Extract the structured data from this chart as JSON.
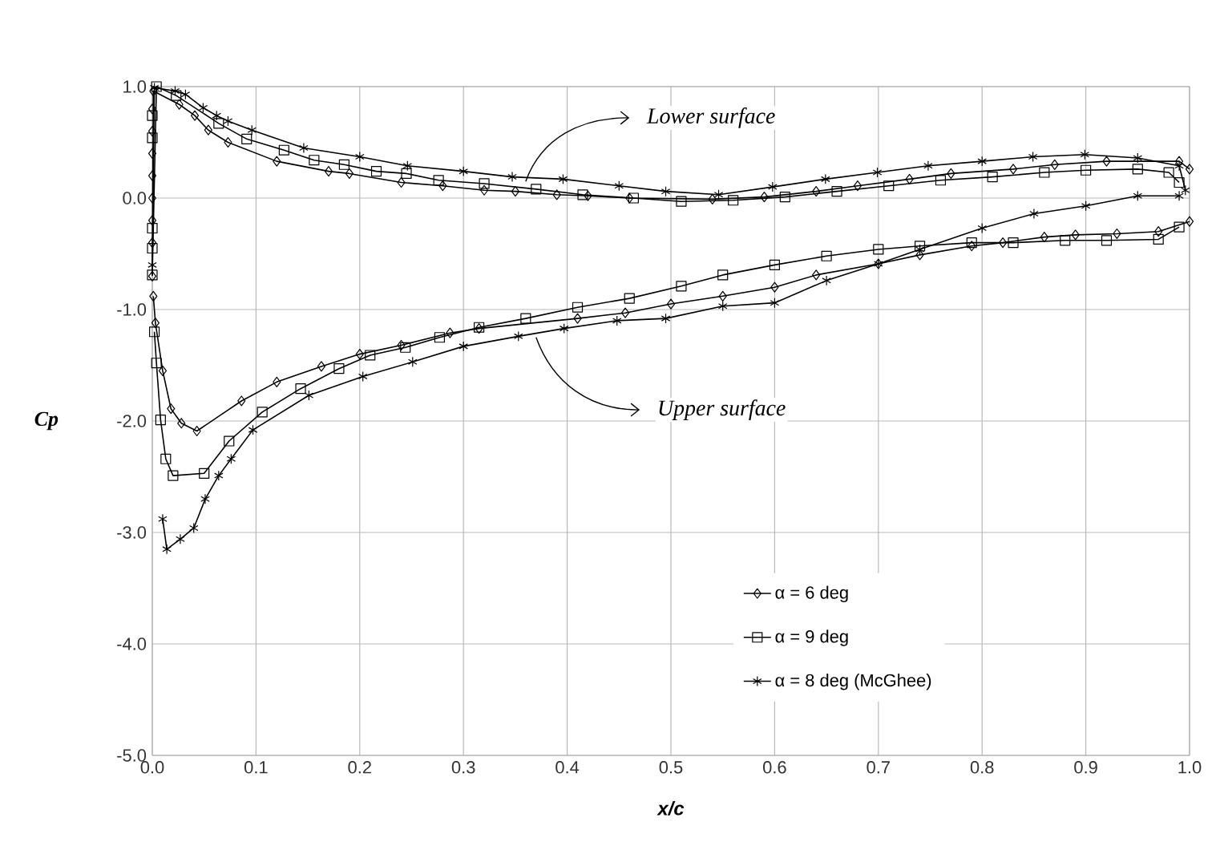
{
  "chart_data": {
    "type": "line",
    "xlabel": "x/c",
    "ylabel": "Cp",
    "xlim": [
      0,
      1
    ],
    "ylim": [
      -5,
      1
    ],
    "xticks": [
      {
        "value": 0,
        "label": "0.0"
      },
      {
        "value": 0.1,
        "label": "0.1"
      },
      {
        "value": 0.2,
        "label": "0.2"
      },
      {
        "value": 0.3,
        "label": "0.3"
      },
      {
        "value": 0.4,
        "label": "0.4"
      },
      {
        "value": 0.5,
        "label": "0.5"
      },
      {
        "value": 0.6,
        "label": "0.6"
      },
      {
        "value": 0.7,
        "label": "0.7"
      },
      {
        "value": 0.8,
        "label": "0.8"
      },
      {
        "value": 0.9,
        "label": "0.9"
      },
      {
        "value": 1,
        "label": "1.0"
      }
    ],
    "yticks": [
      {
        "value": -5,
        "label": "-5.0"
      },
      {
        "value": -4,
        "label": "-4.0"
      },
      {
        "value": -3,
        "label": "-3.0"
      },
      {
        "value": -2,
        "label": "-2.0"
      },
      {
        "value": -1,
        "label": "-1.0"
      },
      {
        "value": 0,
        "label": "0.0"
      },
      {
        "value": 1,
        "label": "1.0"
      }
    ],
    "grid": true,
    "legend": "bottom right",
    "line_style": "solid",
    "annotations": [
      {
        "text": "Lower surface",
        "x": 0.36,
        "y": 0.15
      },
      {
        "text": "Upper surface",
        "x": 0.37,
        "y": -1.25
      }
    ],
    "series": [
      {
        "name": "α = 6 deg",
        "color": "#000000",
        "marker": "diamond",
        "x": [
          1.0,
          0.99,
          0.92,
          0.87,
          0.83,
          0.77,
          0.73,
          0.68,
          0.64,
          0.59,
          0.54,
          0.46,
          0.42,
          0.39,
          0.35,
          0.32,
          0.28,
          0.24,
          0.19,
          0.17,
          0.12,
          0.073,
          0.054,
          0.041,
          0.026,
          0.001,
          0.0
        ],
        "values": [
          0.26,
          0.33,
          0.33,
          0.3,
          0.26,
          0.22,
          0.17,
          0.11,
          0.06,
          0.01,
          -0.01,
          0.0,
          0.02,
          0.03,
          0.06,
          0.07,
          0.11,
          0.14,
          0.22,
          0.24,
          0.33,
          0.5,
          0.61,
          0.74,
          0.84,
          0.96,
          -0.7
        ]
      },
      {
        "color": "#000000",
        "marker": "diamond",
        "x": [
          0.001,
          0.003,
          0.01,
          0.018,
          0.028,
          0.043,
          0.086,
          0.12,
          0.163,
          0.2,
          0.24,
          0.287,
          0.315,
          0.41,
          0.456,
          0.5,
          0.55,
          0.6,
          0.64,
          0.7,
          0.74,
          0.79,
          0.82,
          0.86,
          0.89,
          0.93,
          0.97,
          1.0
        ],
        "values": [
          -0.88,
          -1.12,
          -1.55,
          -1.89,
          -2.02,
          -2.09,
          -1.82,
          -1.65,
          -1.51,
          -1.4,
          -1.32,
          -1.21,
          -1.17,
          -1.08,
          -1.03,
          -0.95,
          -0.88,
          -0.8,
          -0.69,
          -0.59,
          -0.51,
          -0.43,
          -0.4,
          -0.35,
          -0.33,
          -0.32,
          -0.3,
          -0.21
        ]
      },
      {
        "name": "α = 9 deg",
        "color": "#000000",
        "marker": "square",
        "x": [
          0.99,
          0.98,
          0.95,
          0.9,
          0.86,
          0.81,
          0.76,
          0.71,
          0.66,
          0.61,
          0.56,
          0.51,
          0.464,
          0.415,
          0.37,
          0.32,
          0.276,
          0.245,
          0.216,
          0.185,
          0.156,
          0.127,
          0.091,
          0.064,
          0.023,
          0.004,
          0.0
        ],
        "values": [
          0.14,
          0.23,
          0.26,
          0.25,
          0.23,
          0.19,
          0.16,
          0.11,
          0.06,
          0.01,
          -0.02,
          -0.03,
          0.0,
          0.03,
          0.08,
          0.13,
          0.16,
          0.22,
          0.24,
          0.3,
          0.34,
          0.43,
          0.53,
          0.67,
          0.92,
          1.0,
          -0.69
        ]
      },
      {
        "color": "#000000",
        "marker": "square",
        "x": [
          0.002,
          0.004,
          0.008,
          0.013,
          0.02,
          0.05,
          0.074,
          0.106,
          0.143,
          0.18,
          0.21,
          0.244,
          0.277,
          0.315,
          0.36,
          0.41,
          0.46,
          0.51,
          0.55,
          0.6,
          0.65,
          0.7,
          0.74,
          0.79,
          0.83,
          0.88,
          0.92,
          0.97,
          0.99
        ],
        "values": [
          -1.2,
          -1.48,
          -1.99,
          -2.34,
          -2.49,
          -2.47,
          -2.18,
          -1.92,
          -1.71,
          -1.53,
          -1.41,
          -1.34,
          -1.25,
          -1.16,
          -1.08,
          -0.98,
          -0.9,
          -0.79,
          -0.69,
          -0.6,
          -0.52,
          -0.46,
          -0.43,
          -0.4,
          -0.4,
          -0.38,
          -0.38,
          -0.37,
          -0.26
        ]
      },
      {
        "type": "scatter",
        "color": "#000000",
        "marker": "diamond",
        "x": [
          0.0,
          0.0,
          0.0,
          0.0,
          0.0,
          0.0,
          0.0
        ],
        "values": [
          0.8,
          0.6,
          0.4,
          0.2,
          0.0,
          -0.2,
          -0.4
        ]
      },
      {
        "type": "scatter",
        "color": "#000000",
        "marker": "square",
        "x": [
          0.0,
          0.0,
          0.0,
          0.0
        ],
        "values": [
          0.74,
          0.54,
          -0.27,
          -0.45
        ]
      },
      {
        "name": "α = 8 deg (McGhee)",
        "color": "#000000",
        "marker": "cross",
        "x": [
          0.996,
          0.99,
          0.95,
          0.899,
          0.849,
          0.8,
          0.748,
          0.699,
          0.649,
          0.598,
          0.546,
          0.495,
          0.45,
          0.396,
          0.347,
          0.3,
          0.246,
          0.2,
          0.146,
          0.096,
          0.073,
          0.062,
          0.049,
          0.032,
          0.022,
          0.002,
          0.0
        ],
        "values": [
          0.07,
          0.29,
          0.36,
          0.39,
          0.37,
          0.33,
          0.29,
          0.23,
          0.17,
          0.1,
          0.03,
          0.06,
          0.11,
          0.17,
          0.19,
          0.24,
          0.29,
          0.37,
          0.45,
          0.61,
          0.69,
          0.74,
          0.81,
          0.93,
          0.96,
          0.99,
          -0.6
        ]
      },
      {
        "color": "#000000",
        "marker": "cross",
        "x": [
          0.01,
          0.014,
          0.027,
          0.04,
          0.051,
          0.064,
          0.076,
          0.097,
          0.151,
          0.203,
          0.251,
          0.3,
          0.353,
          0.397,
          0.448,
          0.495,
          0.55,
          0.6,
          0.65,
          0.7,
          0.74,
          0.8,
          0.85,
          0.9,
          0.95,
          0.99
        ],
        "values": [
          -2.88,
          -3.15,
          -3.06,
          -2.96,
          -2.7,
          -2.49,
          -2.34,
          -2.08,
          -1.77,
          -1.6,
          -1.47,
          -1.33,
          -1.24,
          -1.17,
          -1.1,
          -1.08,
          -0.97,
          -0.94,
          -0.74,
          -0.59,
          -0.46,
          -0.27,
          -0.14,
          -0.07,
          0.02,
          0.02
        ]
      }
    ]
  }
}
